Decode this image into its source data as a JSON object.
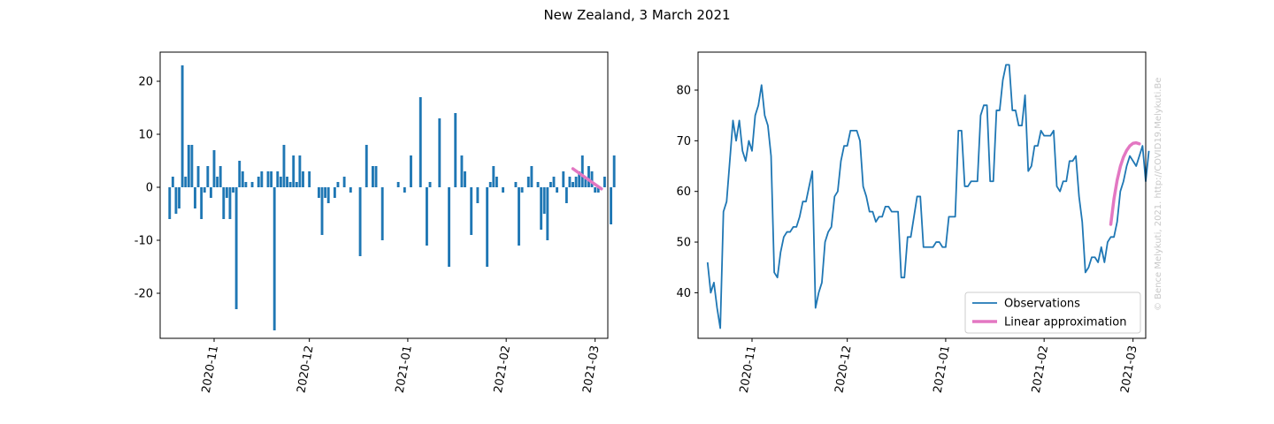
{
  "figure": {
    "title": "New Zealand, 3 March 2021",
    "credit": "© Bence Melykuti, 2021. http://COVID19.Melykuti.Be"
  },
  "colors": {
    "observations": "#1f77b4",
    "approximation": "#e377c2"
  },
  "chart_data": [
    {
      "type": "bar",
      "title": "",
      "xlabel": "",
      "ylabel": "",
      "x_start": "2020-10-18",
      "xlim": [
        "2020-10-15",
        "2021-03-05"
      ],
      "ylim": [
        -28.5,
        25.5
      ],
      "yticks": [
        20,
        10,
        0,
        -10,
        -20
      ],
      "xticks": [
        "2020-11-01",
        "2020-12-01",
        "2021-01-01",
        "2021-02-01",
        "2021-03-01"
      ],
      "xtick_labels": [
        "2020-11",
        "2020-12",
        "2021-01",
        "2021-02",
        "2021-03"
      ],
      "values": [
        -6,
        2,
        -5,
        -4,
        23,
        2,
        8,
        8,
        -4,
        4,
        -6,
        -1,
        4,
        -2,
        7,
        2,
        4,
        -6,
        -2,
        -6,
        -1,
        -23,
        5,
        3,
        1,
        0,
        1,
        0,
        2,
        3,
        0,
        3,
        3,
        -27,
        3,
        2,
        8,
        2,
        1,
        6,
        1,
        6,
        3,
        0,
        3,
        0,
        0,
        -2,
        -9,
        -2,
        -3,
        0,
        -2,
        1,
        0,
        2,
        0,
        -1,
        0,
        0,
        -13,
        0,
        8,
        0,
        4,
        4,
        0,
        -10,
        0,
        0,
        0,
        0,
        1,
        0,
        -1,
        0,
        6,
        0,
        0,
        17,
        0,
        -11,
        1,
        0,
        0,
        13,
        0,
        0,
        -15,
        0,
        14,
        0,
        6,
        3,
        0,
        -9,
        0,
        -3,
        0,
        0,
        -15,
        1,
        4,
        2,
        0,
        -1,
        0,
        0,
        0,
        1,
        -11,
        -1,
        0,
        2,
        4,
        0,
        1,
        -8,
        -5,
        -10,
        1,
        2,
        -1,
        0,
        3,
        -3,
        2,
        1,
        2,
        3,
        6,
        2,
        4,
        3,
        -1,
        -1,
        0,
        2,
        0,
        -7,
        6
      ],
      "series": [
        {
          "name": "Linear approximation",
          "x": [
            "2021-02-22",
            "2021-03-03"
          ],
          "y": [
            3.5,
            -0.3
          ]
        }
      ]
    },
    {
      "type": "line",
      "title": "",
      "xlabel": "",
      "ylabel": "",
      "x_start": "2020-10-18",
      "xlim": [
        "2020-10-15",
        "2021-03-05"
      ],
      "ylim": [
        31,
        87.5
      ],
      "yticks": [
        80,
        70,
        60,
        50,
        40
      ],
      "xticks": [
        "2020-11-01",
        "2020-12-01",
        "2021-01-01",
        "2021-02-01",
        "2021-03-01"
      ],
      "xtick_labels": [
        "2020-11",
        "2020-12",
        "2021-01",
        "2021-02",
        "2021-03"
      ],
      "legend_position": "lower-right",
      "series": [
        {
          "name": "Observations",
          "values": [
            46,
            40,
            42,
            37,
            33,
            56,
            58,
            66,
            74,
            70,
            74,
            68,
            66,
            70,
            68,
            75,
            77,
            81,
            75,
            73,
            67,
            44,
            43,
            48,
            51,
            52,
            52,
            53,
            53,
            55,
            58,
            58,
            61,
            64,
            37,
            40,
            42,
            50,
            52,
            53,
            59,
            60,
            66,
            69,
            69,
            72,
            72,
            72,
            70,
            61,
            59,
            56,
            56,
            54,
            55,
            55,
            57,
            57,
            56,
            56,
            56,
            43,
            43,
            51,
            51,
            55,
            59,
            59,
            49,
            49,
            49,
            49,
            50,
            50,
            49,
            49,
            55,
            55,
            55,
            72,
            72,
            61,
            61,
            62,
            62,
            62,
            75,
            77,
            77,
            62,
            62,
            76,
            76,
            82,
            85,
            85,
            76,
            76,
            73,
            73,
            79,
            64,
            65,
            69,
            69,
            72,
            71,
            71,
            71,
            72,
            61,
            60,
            62,
            62,
            66,
            66,
            67,
            59,
            54,
            44,
            45,
            47,
            47,
            46,
            49,
            46,
            50,
            51,
            51,
            54,
            60,
            62,
            65,
            67,
            66,
            65,
            67,
            69,
            62,
            68
          ]
        },
        {
          "name": "Linear approximation",
          "x": [
            "2021-02-22",
            "2021-02-23",
            "2021-02-24",
            "2021-02-25",
            "2021-02-26",
            "2021-02-27",
            "2021-02-28",
            "2021-03-01",
            "2021-03-02",
            "2021-03-03"
          ],
          "y": [
            53.5,
            58.5,
            62.2,
            64.9,
            66.8,
            68.1,
            69.0,
            69.5,
            69.6,
            69.4
          ]
        }
      ]
    }
  ]
}
